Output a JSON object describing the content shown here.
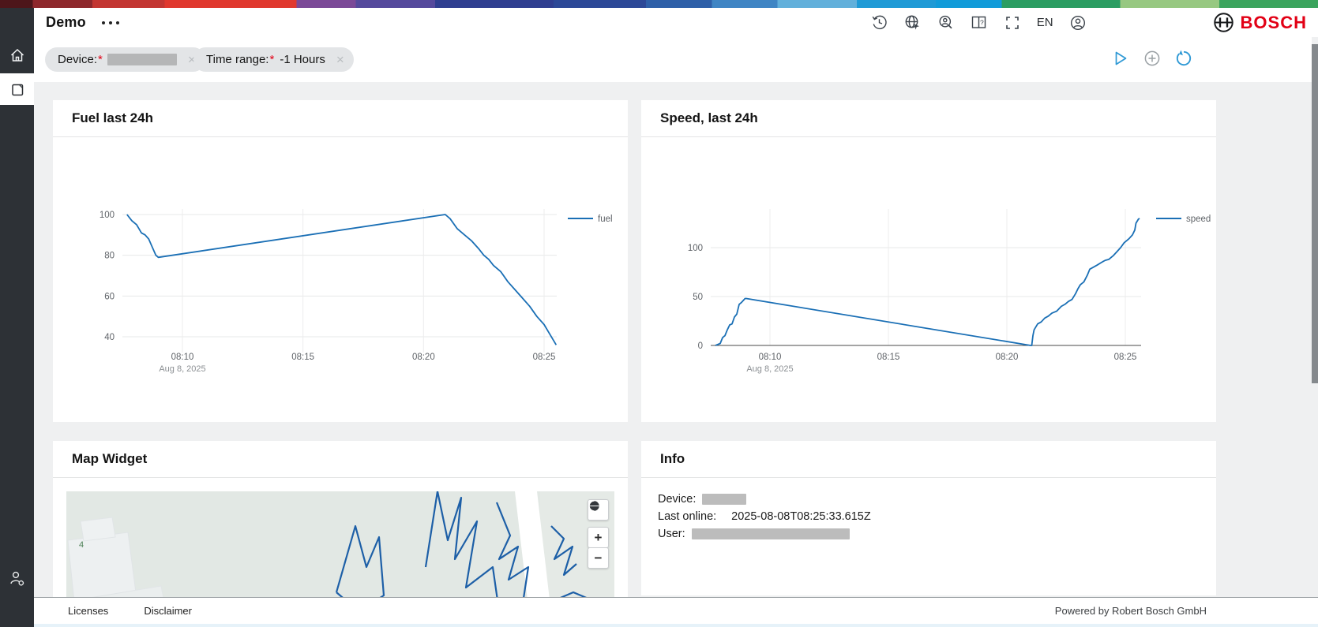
{
  "brand": {
    "logo_text": "BOSCH",
    "logo_color": "#e20015",
    "supergraphic": [
      [
        "#4d161a",
        2.5
      ],
      [
        "#8e282c",
        7
      ],
      [
        "#c33632",
        12.5
      ],
      [
        "#e0382e",
        22.5
      ],
      [
        "#7b4997",
        27
      ],
      [
        "#55499c",
        33
      ],
      [
        "#2f3e90",
        42
      ],
      [
        "#2c4897",
        49
      ],
      [
        "#2e5fa8",
        54
      ],
      [
        "#3f85c4",
        59
      ],
      [
        "#62b0db",
        65
      ],
      [
        "#1f9ad6",
        71
      ],
      [
        "#119bd9",
        76
      ],
      [
        "#2b9d62",
        85
      ],
      [
        "#97c881",
        92.5
      ],
      [
        "#3ba45d",
        100
      ]
    ]
  },
  "header": {
    "title": "Demo",
    "language": "EN"
  },
  "filters": {
    "close_glyph": "×",
    "chips": [
      {
        "label": "Device:",
        "required_mark": "*",
        "value": "",
        "redacted": true
      },
      {
        "label": "Time range:",
        "required_mark": "*",
        "value": "-1 Hours",
        "redacted": false
      }
    ]
  },
  "widgets": {
    "fuel": {
      "title": "Fuel last 24h"
    },
    "speed": {
      "title": "Speed, last 24h"
    },
    "map": {
      "title": "Map Widget",
      "road_label": "4",
      "zoom_in": "+",
      "zoom_out": "−"
    },
    "info": {
      "title": "Info",
      "rows": [
        {
          "label": "Device:",
          "value": "",
          "redacted": true
        },
        {
          "label": "Last online:",
          "value": "2025-08-08T08:25:33.615Z",
          "redacted": false
        },
        {
          "label": "User:",
          "value": "",
          "redacted": true
        }
      ]
    }
  },
  "footer": {
    "links": [
      "Licenses",
      "Disclaimer"
    ],
    "powered_by": "Powered by Robert Bosch GmbH"
  },
  "chart_data": [
    {
      "type": "line",
      "title": "Fuel last 24h",
      "legend": "fuel",
      "color": "#1a6fb5",
      "xlabel": "",
      "ylabel": "",
      "x_axis": {
        "range_minutes": [
          7.5,
          25.9
        ],
        "date_sub_label": "Aug 8, 2025",
        "ticks": [
          {
            "m": 10,
            "label": "08:10",
            "sub": "Aug 8, 2025"
          },
          {
            "m": 15,
            "label": "08:15"
          },
          {
            "m": 20,
            "label": "08:20"
          },
          {
            "m": 25,
            "label": "08:25"
          }
        ]
      },
      "y_axis": {
        "ticks": [
          40,
          60,
          80,
          100
        ],
        "range": [
          33,
          106
        ]
      },
      "grid": true,
      "zero_axis": false,
      "points": [
        [
          7.7,
          100
        ],
        [
          7.9,
          97
        ],
        [
          8.1,
          95
        ],
        [
          8.3,
          91
        ],
        [
          8.45,
          90
        ],
        [
          8.6,
          88
        ],
        [
          8.75,
          84
        ],
        [
          8.9,
          80
        ],
        [
          9.0,
          79
        ],
        [
          20.9,
          100
        ],
        [
          21.1,
          98
        ],
        [
          21.4,
          93
        ],
        [
          21.7,
          90
        ],
        [
          22.0,
          87
        ],
        [
          22.3,
          83
        ],
        [
          22.5,
          80
        ],
        [
          22.7,
          78
        ],
        [
          22.9,
          75
        ],
        [
          23.2,
          72
        ],
        [
          23.5,
          67
        ],
        [
          23.8,
          63
        ],
        [
          24.1,
          59
        ],
        [
          24.4,
          55
        ],
        [
          24.7,
          50
        ],
        [
          25.0,
          46
        ],
        [
          25.2,
          42
        ],
        [
          25.35,
          39
        ],
        [
          25.5,
          36
        ]
      ]
    },
    {
      "type": "line",
      "title": "Speed, last 24h",
      "legend": "speed",
      "color": "#1a6fb5",
      "xlabel": "",
      "ylabel": "",
      "x_axis": {
        "range_minutes": [
          7.5,
          25.9
        ],
        "date_sub_label": "Aug 8, 2025",
        "ticks": [
          {
            "m": 10,
            "label": "08:10",
            "sub": "Aug 8, 2025"
          },
          {
            "m": 15,
            "label": "08:15"
          },
          {
            "m": 20,
            "label": "08:20"
          },
          {
            "m": 25,
            "label": "08:25"
          }
        ]
      },
      "y_axis": {
        "ticks": [
          0,
          50,
          100
        ],
        "range": [
          0,
          135
        ]
      },
      "grid": true,
      "zero_axis": true,
      "points": [
        [
          7.7,
          0
        ],
        [
          7.9,
          2
        ],
        [
          8.0,
          8
        ],
        [
          8.1,
          10
        ],
        [
          8.2,
          16
        ],
        [
          8.3,
          21
        ],
        [
          8.4,
          22
        ],
        [
          8.5,
          29
        ],
        [
          8.6,
          32
        ],
        [
          8.7,
          42
        ],
        [
          8.8,
          44
        ],
        [
          8.95,
          48
        ],
        [
          9.0,
          48
        ],
        [
          21.0,
          0
        ],
        [
          21.05,
          0
        ],
        [
          21.1,
          10
        ],
        [
          21.15,
          16
        ],
        [
          21.2,
          18
        ],
        [
          21.3,
          22
        ],
        [
          21.45,
          24
        ],
        [
          21.6,
          28
        ],
        [
          21.75,
          30
        ],
        [
          21.9,
          33
        ],
        [
          22.1,
          35
        ],
        [
          22.3,
          40
        ],
        [
          22.45,
          42
        ],
        [
          22.6,
          45
        ],
        [
          22.75,
          47
        ],
        [
          22.9,
          53
        ],
        [
          23.0,
          58
        ],
        [
          23.1,
          62
        ],
        [
          23.25,
          65
        ],
        [
          23.4,
          72
        ],
        [
          23.5,
          78
        ],
        [
          23.65,
          80
        ],
        [
          23.8,
          82
        ],
        [
          24.0,
          85
        ],
        [
          24.15,
          87
        ],
        [
          24.3,
          88
        ],
        [
          24.5,
          92
        ],
        [
          24.65,
          96
        ],
        [
          24.8,
          100
        ],
        [
          24.95,
          105
        ],
        [
          25.05,
          107
        ],
        [
          25.15,
          109
        ],
        [
          25.3,
          113
        ],
        [
          25.4,
          118
        ],
        [
          25.45,
          125
        ],
        [
          25.55,
          129
        ],
        [
          25.6,
          130
        ]
      ]
    }
  ]
}
